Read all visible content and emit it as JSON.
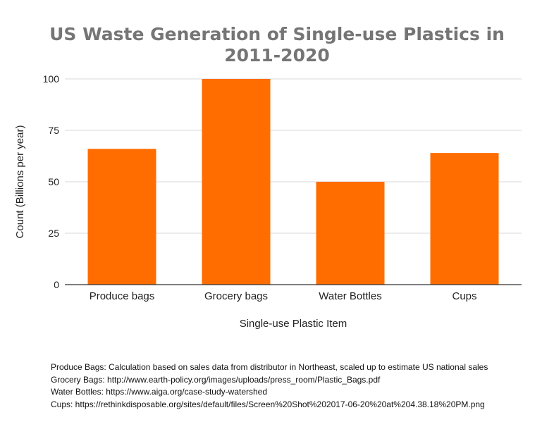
{
  "chart_data": {
    "type": "bar",
    "title_lines": [
      "US Waste Generation of Single-use Plastics in",
      "2011-2020"
    ],
    "xlabel": "Single-use Plastic Item",
    "ylabel": "Count (Billions per year)",
    "categories": [
      "Produce bags",
      "Grocery bags",
      "Water Bottles",
      "Cups"
    ],
    "values": [
      66,
      100,
      50,
      64
    ],
    "ylim": [
      0,
      100
    ],
    "yticks": [
      0,
      25,
      50,
      75,
      100
    ],
    "grid": true,
    "legend": "none",
    "bar_color": "#ff6d01",
    "grid_color": "#d9d9d9",
    "axis_color": "#333333"
  },
  "sources": [
    "Produce Bags: Calculation based on sales data from distributor in Northeast, scaled up to estimate US national sales",
    "Grocery Bags: http://www.earth-policy.org/images/uploads/press_room/Plastic_Bags.pdf",
    "Water Bottles: https://www.aiga.org/case-study-watershed",
    "Cups: https://rethinkdisposable.org/sites/default/files/Screen%20Shot%202017-06-20%20at%204.38.18%20PM.png"
  ]
}
